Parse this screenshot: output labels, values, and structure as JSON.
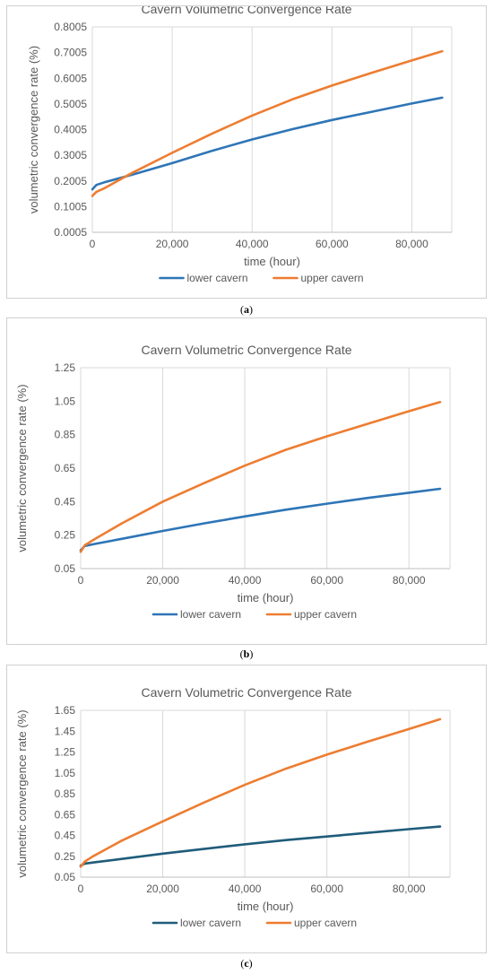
{
  "charts": [
    {
      "caption_left": "(",
      "caption_letter": "a",
      "caption_right": ")"
    },
    {
      "caption_left": "(",
      "caption_letter": "b",
      "caption_right": ")"
    },
    {
      "caption_left": "(",
      "caption_letter": "c",
      "caption_right": ")"
    }
  ],
  "chart_data": [
    {
      "type": "line",
      "title": "Cavern Volumetric Convergence Rate",
      "xlabel": "time (hour)",
      "ylabel": "volumetric convergence rate (%)",
      "xlim": [
        0,
        90000
      ],
      "xticks": [
        0,
        20000,
        40000,
        60000,
        80000
      ],
      "xtick_labels": [
        "0",
        "20,000",
        "40,000",
        "60,000",
        "80,000"
      ],
      "ylim": [
        0.0005,
        0.8005
      ],
      "yticks": [
        0.0005,
        0.1005,
        0.2005,
        0.3005,
        0.4005,
        0.5005,
        0.6005,
        0.7005,
        0.8005
      ],
      "ytick_labels": [
        "0.0005",
        "0.1005",
        "0.2005",
        "0.3005",
        "0.4005",
        "0.5005",
        "0.6005",
        "0.7005",
        "0.8005"
      ],
      "grid": "vertical",
      "legend": "bottom",
      "series": [
        {
          "name": "lower cavern",
          "color": "#2e75b6",
          "x": [
            0,
            1000,
            3000,
            10000,
            20000,
            30000,
            40000,
            50000,
            60000,
            70000,
            80000,
            87600
          ],
          "y": [
            0.168,
            0.185,
            0.195,
            0.225,
            0.27,
            0.318,
            0.362,
            0.402,
            0.438,
            0.47,
            0.502,
            0.525
          ]
        },
        {
          "name": "upper cavern",
          "color": "#ed7d31",
          "x": [
            0,
            1000,
            3000,
            10000,
            20000,
            30000,
            40000,
            50000,
            60000,
            70000,
            80000,
            87600
          ],
          "y": [
            0.142,
            0.158,
            0.172,
            0.232,
            0.31,
            0.385,
            0.455,
            0.518,
            0.572,
            0.622,
            0.67,
            0.706
          ]
        }
      ]
    },
    {
      "type": "line",
      "title": "Cavern Volumetric Convergence Rate",
      "xlabel": "time (hour)",
      "ylabel": "volumetric convergence rate (%)",
      "xlim": [
        0,
        90000
      ],
      "xticks": [
        0,
        20000,
        40000,
        60000,
        80000
      ],
      "xtick_labels": [
        "0",
        "20,000",
        "40,000",
        "60,000",
        "80,000"
      ],
      "ylim": [
        0.05,
        1.25
      ],
      "yticks": [
        0.05,
        0.25,
        0.45,
        0.65,
        0.85,
        1.05,
        1.25
      ],
      "ytick_labels": [
        "0.05",
        "0.25",
        "0.45",
        "0.65",
        "0.85",
        "1.05",
        "1.25"
      ],
      "grid": "vertical",
      "legend": "bottom",
      "series": [
        {
          "name": "lower cavern",
          "color": "#2e75b6",
          "x": [
            0,
            1000,
            3000,
            10000,
            20000,
            30000,
            40000,
            50000,
            60000,
            70000,
            80000,
            87600
          ],
          "y": [
            0.16,
            0.185,
            0.195,
            0.228,
            0.275,
            0.32,
            0.362,
            0.402,
            0.438,
            0.472,
            0.503,
            0.527
          ]
        },
        {
          "name": "upper cavern",
          "color": "#ed7d31",
          "x": [
            0,
            1000,
            3000,
            10000,
            20000,
            30000,
            40000,
            50000,
            60000,
            70000,
            80000,
            87600
          ],
          "y": [
            0.15,
            0.19,
            0.22,
            0.32,
            0.45,
            0.56,
            0.665,
            0.76,
            0.84,
            0.915,
            0.99,
            1.045
          ]
        }
      ]
    },
    {
      "type": "line",
      "title": "Cavern Volumetric Convergence Rate",
      "xlabel": "time (hour)",
      "ylabel": "volumetric convergence rate (%)",
      "xlim": [
        0,
        90000
      ],
      "xticks": [
        0,
        20000,
        40000,
        60000,
        80000
      ],
      "xtick_labels": [
        "0",
        "20,000",
        "40,000",
        "60,000",
        "80,000"
      ],
      "ylim": [
        0.05,
        1.65
      ],
      "yticks": [
        0.05,
        0.25,
        0.45,
        0.65,
        0.85,
        1.05,
        1.25,
        1.45,
        1.65
      ],
      "ytick_labels": [
        "0.05",
        "0.25",
        "0.45",
        "0.65",
        "0.85",
        "1.05",
        "1.25",
        "1.45",
        "1.65"
      ],
      "grid": "vertical",
      "legend": "bottom",
      "series": [
        {
          "name": "lower cavern",
          "color": "#1f5c7a",
          "x": [
            0,
            1000,
            3000,
            10000,
            20000,
            30000,
            40000,
            50000,
            60000,
            70000,
            80000,
            87600
          ],
          "y": [
            0.16,
            0.18,
            0.19,
            0.225,
            0.275,
            0.32,
            0.365,
            0.405,
            0.44,
            0.475,
            0.51,
            0.535
          ]
        },
        {
          "name": "upper cavern",
          "color": "#ed7d31",
          "x": [
            0,
            1000,
            3000,
            10000,
            20000,
            30000,
            40000,
            50000,
            60000,
            70000,
            80000,
            87600
          ],
          "y": [
            0.15,
            0.2,
            0.25,
            0.4,
            0.585,
            0.765,
            0.935,
            1.09,
            1.225,
            1.35,
            1.47,
            1.565
          ]
        }
      ]
    }
  ]
}
